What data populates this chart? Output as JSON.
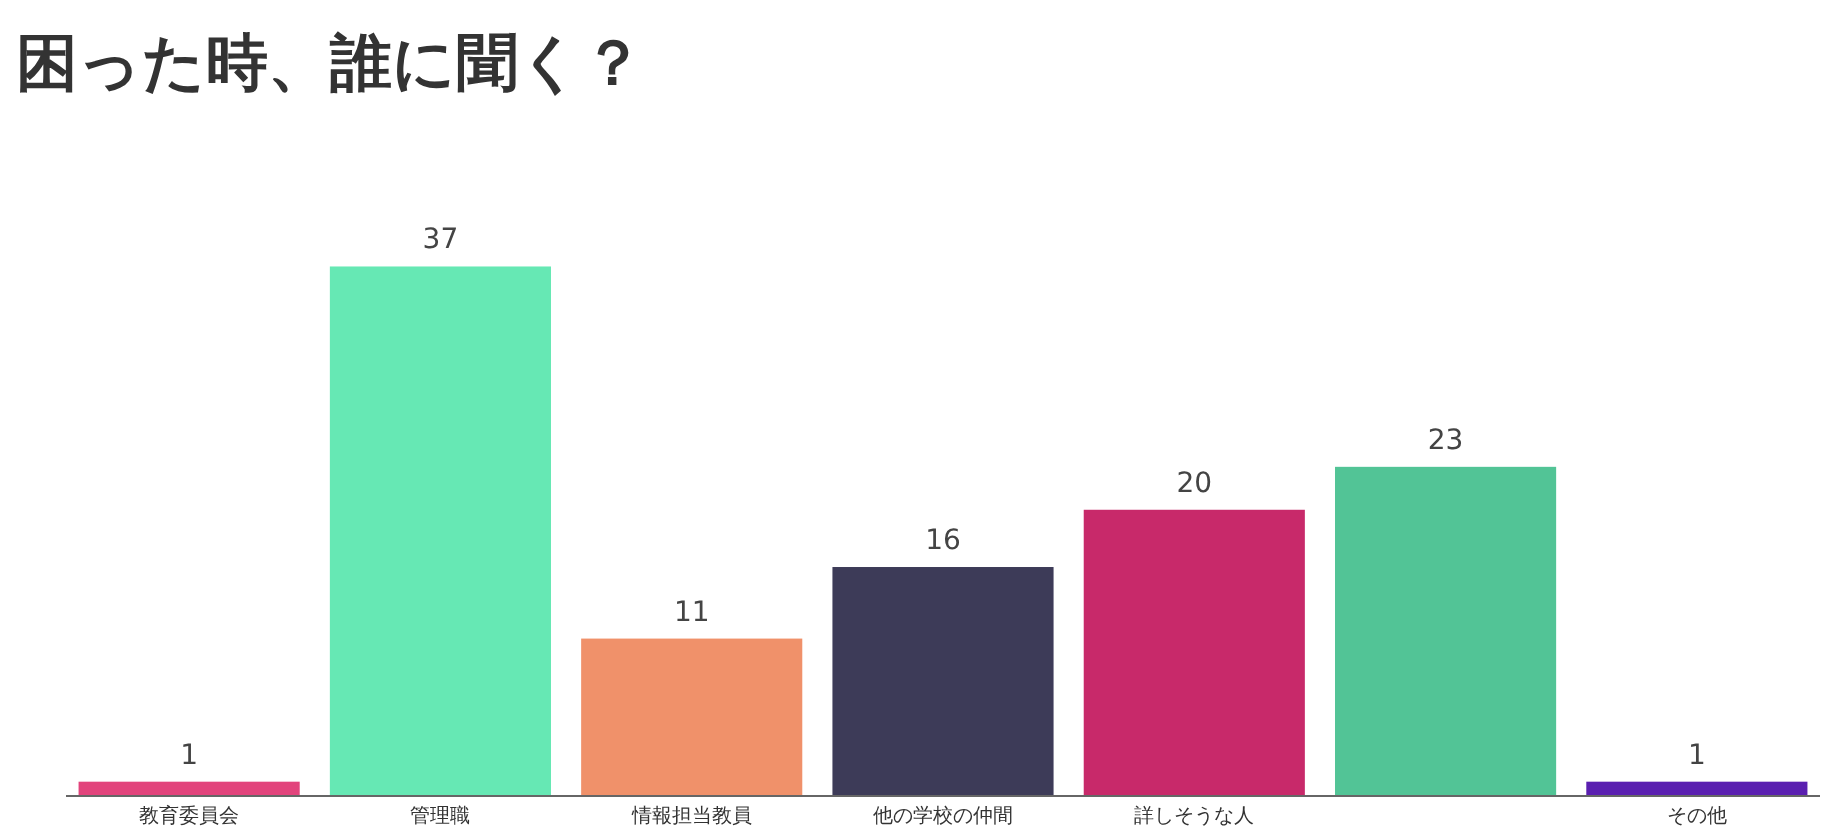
{
  "chart_data": {
    "type": "bar",
    "title": "困った時、誰に聞く？",
    "categories": [
      "教育委員会",
      "管理職",
      "情報担当教員",
      "他の学校の仲間",
      "詳しそうな人",
      null,
      "その他"
    ],
    "values": [
      1,
      37,
      11,
      16,
      20,
      23,
      1
    ],
    "colors": [
      "#e2447c",
      "#66e8b4",
      "#f0916a",
      "#3d3b58",
      "#c8296a",
      "#52c496",
      "#5a1fb0"
    ],
    "data_labels": true
  }
}
